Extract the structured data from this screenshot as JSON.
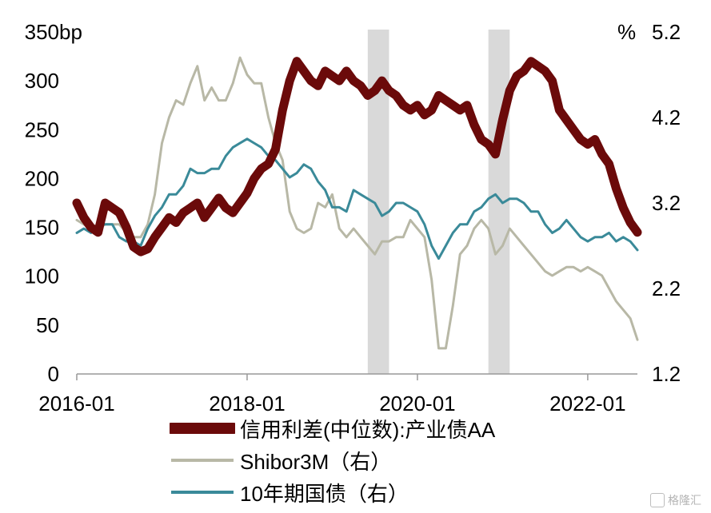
{
  "chart_data": {
    "type": "line",
    "left_axis": {
      "unit_label": "bp",
      "ylim": [
        0,
        350
      ],
      "ticks": [
        "350",
        "300",
        "250",
        "200",
        "150",
        "100",
        "50",
        "0"
      ]
    },
    "right_axis": {
      "unit_label": "%",
      "ylim": [
        1.2,
        5.2
      ],
      "ticks": [
        "5.2",
        "4.2",
        "3.2",
        "2.2",
        "1.2"
      ]
    },
    "x_ticks": [
      "2016-01",
      "2018-01",
      "2020-01",
      "2022-01"
    ],
    "xlim": [
      "2016-01",
      "2022-08"
    ],
    "shaded_periods": [
      [
        "2019-06",
        "2019-09"
      ],
      [
        "2020-11",
        "2021-02"
      ]
    ],
    "grid": false,
    "legend_position": "bottom",
    "series": [
      {
        "name": "信用利差(中位数):产业债AA",
        "axis": "left",
        "color": "#6b0a0a",
        "x": [
          "2016-01",
          "2016-02",
          "2016-03",
          "2016-04",
          "2016-05",
          "2016-06",
          "2016-07",
          "2016-08",
          "2016-09",
          "2016-10",
          "2016-11",
          "2016-12",
          "2017-01",
          "2017-02",
          "2017-03",
          "2017-04",
          "2017-05",
          "2017-06",
          "2017-07",
          "2017-08",
          "2017-09",
          "2017-10",
          "2017-11",
          "2017-12",
          "2018-01",
          "2018-02",
          "2018-03",
          "2018-04",
          "2018-05",
          "2018-06",
          "2018-07",
          "2018-08",
          "2018-09",
          "2018-10",
          "2018-11",
          "2018-12",
          "2019-01",
          "2019-02",
          "2019-03",
          "2019-04",
          "2019-05",
          "2019-06",
          "2019-07",
          "2019-08",
          "2019-09",
          "2019-10",
          "2019-11",
          "2019-12",
          "2020-01",
          "2020-02",
          "2020-03",
          "2020-04",
          "2020-05",
          "2020-06",
          "2020-07",
          "2020-08",
          "2020-09",
          "2020-10",
          "2020-11",
          "2020-12",
          "2021-01",
          "2021-02",
          "2021-03",
          "2021-04",
          "2021-05",
          "2021-06",
          "2021-07",
          "2021-08",
          "2021-09",
          "2021-10",
          "2021-11",
          "2021-12",
          "2022-01",
          "2022-02",
          "2022-03",
          "2022-04",
          "2022-05",
          "2022-06",
          "2022-07",
          "2022-08"
        ],
        "values": [
          175,
          160,
          150,
          145,
          175,
          170,
          165,
          150,
          130,
          125,
          128,
          140,
          150,
          160,
          155,
          165,
          170,
          175,
          160,
          170,
          180,
          170,
          165,
          175,
          185,
          200,
          210,
          215,
          230,
          270,
          300,
          320,
          310,
          300,
          295,
          310,
          305,
          300,
          310,
          300,
          295,
          285,
          290,
          300,
          290,
          285,
          275,
          270,
          275,
          265,
          270,
          285,
          280,
          275,
          270,
          275,
          255,
          240,
          235,
          225,
          260,
          290,
          305,
          310,
          320,
          315,
          310,
          300,
          270,
          260,
          250,
          240,
          235,
          240,
          225,
          215,
          190,
          170,
          155,
          145
        ]
      },
      {
        "name": "Shibor3M（右）",
        "axis": "right",
        "color": "#b8b8a6",
        "x": [
          "2016-01",
          "2016-02",
          "2016-03",
          "2016-04",
          "2016-05",
          "2016-06",
          "2016-07",
          "2016-08",
          "2016-09",
          "2016-10",
          "2016-11",
          "2016-12",
          "2017-01",
          "2017-02",
          "2017-03",
          "2017-04",
          "2017-05",
          "2017-06",
          "2017-07",
          "2017-08",
          "2017-09",
          "2017-10",
          "2017-11",
          "2017-12",
          "2018-01",
          "2018-02",
          "2018-03",
          "2018-04",
          "2018-05",
          "2018-06",
          "2018-07",
          "2018-08",
          "2018-09",
          "2018-10",
          "2018-11",
          "2018-12",
          "2019-01",
          "2019-02",
          "2019-03",
          "2019-04",
          "2019-05",
          "2019-06",
          "2019-07",
          "2019-08",
          "2019-09",
          "2019-10",
          "2019-11",
          "2019-12",
          "2020-01",
          "2020-02",
          "2020-03",
          "2020-04",
          "2020-05",
          "2020-06",
          "2020-07",
          "2020-08",
          "2020-09",
          "2020-10",
          "2020-11",
          "2020-12",
          "2021-01",
          "2021-02",
          "2021-03",
          "2021-04",
          "2021-05",
          "2021-06",
          "2021-07",
          "2021-08",
          "2021-09",
          "2021-10",
          "2021-11",
          "2021-12",
          "2022-01",
          "2022-02",
          "2022-03",
          "2022-04",
          "2022-05",
          "2022-06",
          "2022-07",
          "2022-08"
        ],
        "values": [
          3.0,
          2.95,
          2.9,
          2.9,
          2.95,
          2.95,
          2.95,
          2.85,
          2.8,
          2.8,
          2.95,
          3.3,
          3.9,
          4.2,
          4.4,
          4.35,
          4.6,
          4.8,
          4.4,
          4.55,
          4.4,
          4.4,
          4.6,
          4.9,
          4.7,
          4.6,
          4.6,
          4.2,
          3.9,
          3.7,
          3.1,
          2.9,
          2.85,
          2.9,
          3.2,
          3.15,
          3.3,
          2.9,
          2.8,
          2.9,
          2.8,
          2.7,
          2.6,
          2.75,
          2.75,
          2.8,
          2.8,
          3.0,
          2.9,
          2.8,
          2.3,
          1.5,
          1.5,
          2.0,
          2.6,
          2.7,
          2.9,
          3.0,
          2.9,
          2.6,
          2.7,
          2.9,
          2.8,
          2.7,
          2.6,
          2.5,
          2.4,
          2.35,
          2.4,
          2.45,
          2.45,
          2.4,
          2.45,
          2.4,
          2.35,
          2.2,
          2.05,
          1.95,
          1.85,
          1.6
        ]
      },
      {
        "name": "10年期国债（右）",
        "axis": "right",
        "color": "#3a8a99",
        "x": [
          "2016-01",
          "2016-02",
          "2016-03",
          "2016-04",
          "2016-05",
          "2016-06",
          "2016-07",
          "2016-08",
          "2016-09",
          "2016-10",
          "2016-11",
          "2016-12",
          "2017-01",
          "2017-02",
          "2017-03",
          "2017-04",
          "2017-05",
          "2017-06",
          "2017-07",
          "2017-08",
          "2017-09",
          "2017-10",
          "2017-11",
          "2017-12",
          "2018-01",
          "2018-02",
          "2018-03",
          "2018-04",
          "2018-05",
          "2018-06",
          "2018-07",
          "2018-08",
          "2018-09",
          "2018-10",
          "2018-11",
          "2018-12",
          "2019-01",
          "2019-02",
          "2019-03",
          "2019-04",
          "2019-05",
          "2019-06",
          "2019-07",
          "2019-08",
          "2019-09",
          "2019-10",
          "2019-11",
          "2019-12",
          "2020-01",
          "2020-02",
          "2020-03",
          "2020-04",
          "2020-05",
          "2020-06",
          "2020-07",
          "2020-08",
          "2020-09",
          "2020-10",
          "2020-11",
          "2020-12",
          "2021-01",
          "2021-02",
          "2021-03",
          "2021-04",
          "2021-05",
          "2021-06",
          "2021-07",
          "2021-08",
          "2021-09",
          "2021-10",
          "2021-11",
          "2021-12",
          "2022-01",
          "2022-02",
          "2022-03",
          "2022-04",
          "2022-05",
          "2022-06",
          "2022-07",
          "2022-08"
        ],
        "values": [
          2.85,
          2.9,
          2.85,
          2.95,
          2.95,
          2.95,
          2.8,
          2.75,
          2.75,
          2.7,
          2.9,
          3.05,
          3.15,
          3.3,
          3.3,
          3.4,
          3.6,
          3.55,
          3.55,
          3.6,
          3.6,
          3.75,
          3.85,
          3.9,
          3.95,
          3.9,
          3.85,
          3.75,
          3.7,
          3.6,
          3.5,
          3.55,
          3.65,
          3.6,
          3.45,
          3.35,
          3.15,
          3.15,
          3.1,
          3.35,
          3.3,
          3.25,
          3.2,
          3.05,
          3.1,
          3.2,
          3.2,
          3.15,
          3.1,
          2.95,
          2.7,
          2.55,
          2.7,
          2.85,
          2.95,
          2.95,
          3.1,
          3.15,
          3.25,
          3.3,
          3.2,
          3.25,
          3.25,
          3.2,
          3.1,
          3.1,
          2.95,
          2.85,
          2.9,
          3.0,
          2.9,
          2.8,
          2.75,
          2.8,
          2.8,
          2.85,
          2.75,
          2.8,
          2.75,
          2.65
        ]
      }
    ]
  },
  "legend": {
    "items": [
      {
        "label": "信用利差(中位数):产业债AA",
        "color": "#6b0a0a"
      },
      {
        "label": "Shibor3M（右）",
        "color": "#b8b8a6"
      },
      {
        "label": "10年期国债（右）",
        "color": "#3a8a99"
      }
    ]
  },
  "watermark": {
    "text": "格隆汇"
  }
}
